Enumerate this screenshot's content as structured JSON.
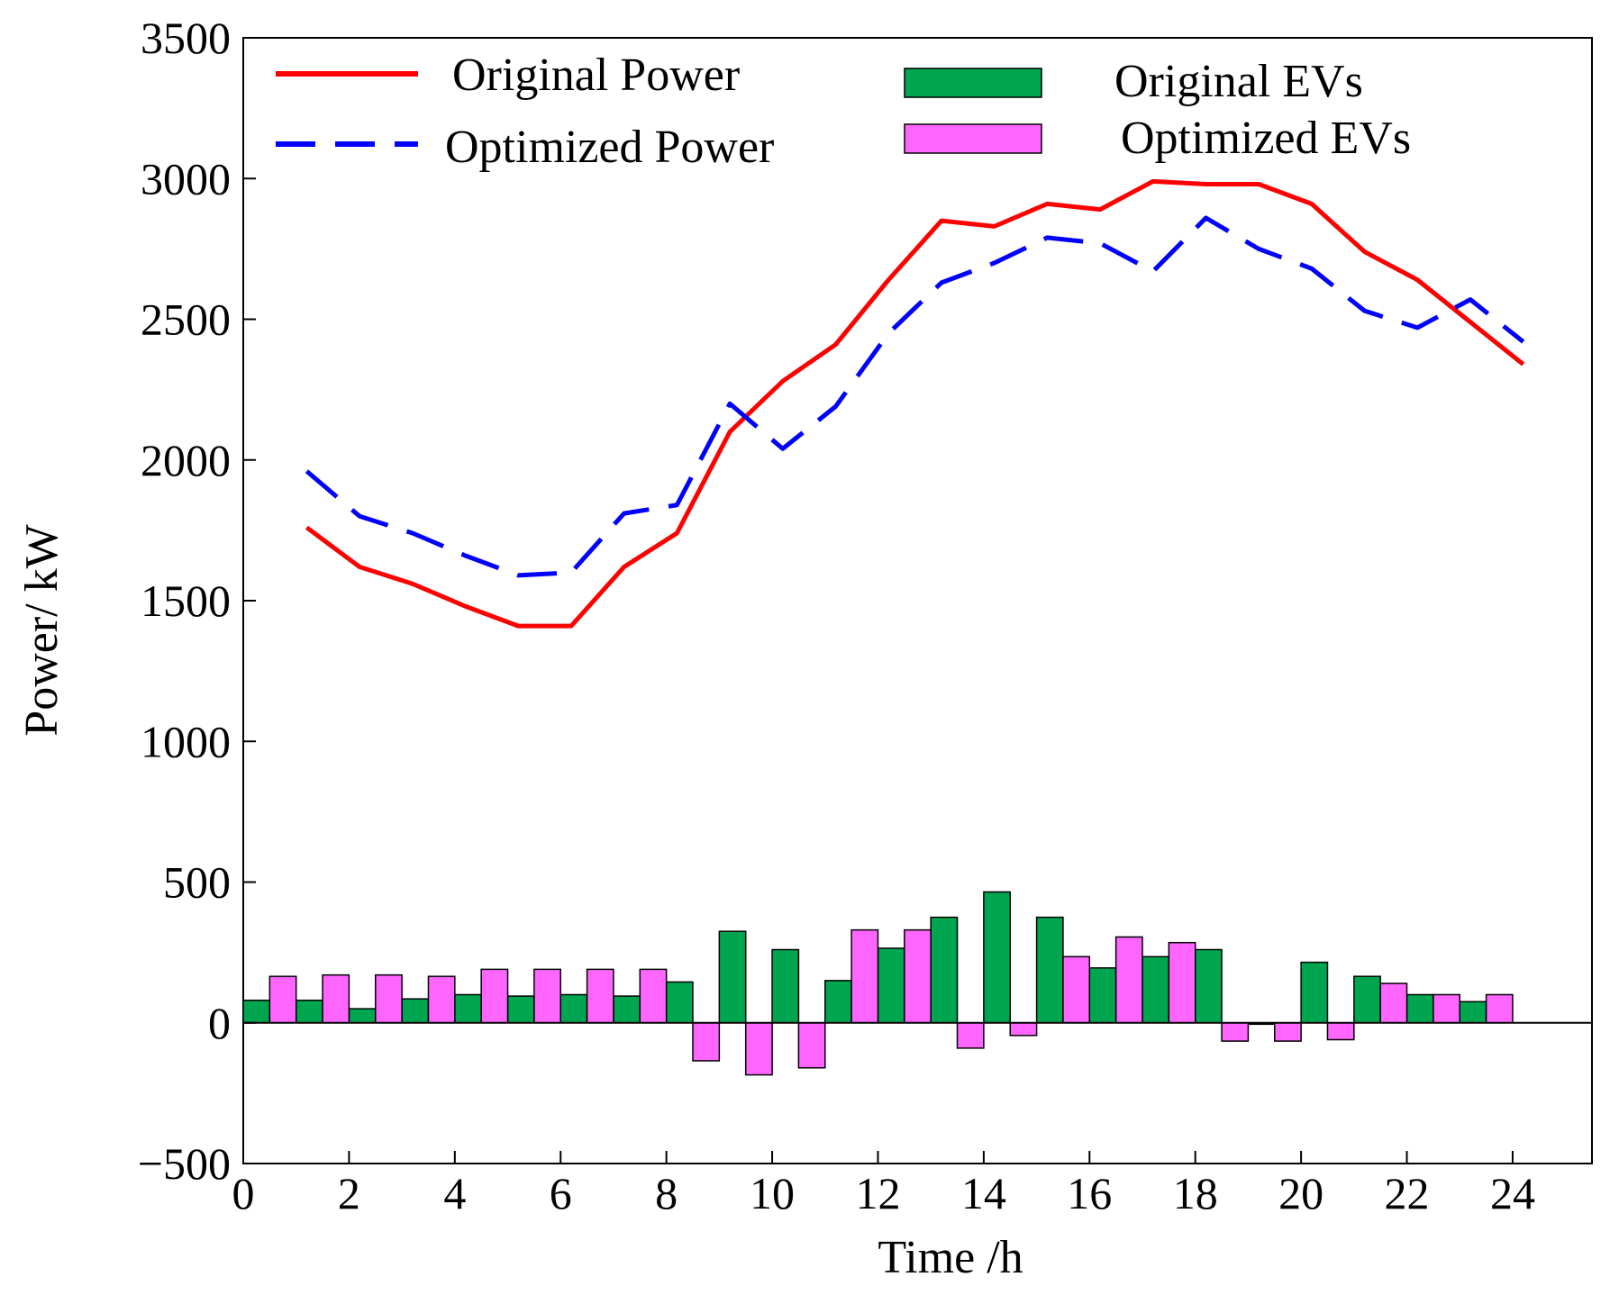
{
  "chart_data": {
    "type": "bar+line",
    "title": "",
    "xlabel": "Time  /h",
    "ylabel": "Power/ kW",
    "xlim": [
      0,
      25.5
    ],
    "ylim": [
      -500,
      3500
    ],
    "xticks": [
      0,
      2,
      4,
      6,
      8,
      10,
      12,
      14,
      16,
      18,
      20,
      22,
      24
    ],
    "xtick_labels": [
      "0",
      "2",
      "4",
      "6",
      "8",
      "10",
      "12",
      "14",
      "16",
      "18",
      "20",
      "22",
      "24"
    ],
    "yticks": [
      -500,
      0,
      500,
      1000,
      1500,
      2000,
      2500,
      3000,
      3500
    ],
    "ytick_labels": [
      "−500",
      "0",
      "500",
      "1000",
      "1500",
      "2000",
      "2500",
      "3000",
      "3500"
    ],
    "line_x": [
      1.2,
      2.2,
      3.2,
      4.2,
      5.2,
      6.2,
      7.2,
      8.2,
      9.2,
      10.2,
      11.2,
      12.2,
      13.2,
      14.2,
      15.2,
      16.2,
      17.2,
      18.2,
      19.2,
      20.2,
      21.2,
      22.2,
      23.2,
      24.2
    ],
    "series": [
      {
        "name": "Original Power",
        "kind": "line",
        "style": "solid",
        "color": "#ff0000",
        "values": [
          1760,
          1620,
          1560,
          1480,
          1410,
          1410,
          1620,
          1740,
          2100,
          2280,
          2410,
          2640,
          2850,
          2830,
          2910,
          2890,
          2990,
          2980,
          2980,
          2910,
          2740,
          2640,
          2490,
          2340
        ]
      },
      {
        "name": "Optimized Power",
        "kind": "line",
        "style": "dashed",
        "color": "#0000ff",
        "values": [
          1960,
          1800,
          1740,
          1660,
          1590,
          1600,
          1810,
          1840,
          2200,
          2040,
          2190,
          2450,
          2630,
          2700,
          2790,
          2770,
          2670,
          2860,
          2750,
          2680,
          2530,
          2470,
          2570,
          2420
        ]
      }
    ],
    "bar_pairs_center_x": [
      0.5,
      1.5,
      2.5,
      3.5,
      4.5,
      5.5,
      6.5,
      7.5,
      8.5,
      9.5,
      10.5,
      11.5,
      12.5,
      13.5,
      14.5,
      15.5,
      16.5,
      17.5,
      18.5,
      19.5,
      20.5,
      21.5,
      22.5,
      23.5
    ],
    "bar_series": [
      {
        "name": "Original EVs",
        "kind": "bar",
        "color": "#00a550",
        "values": [
          80,
          80,
          50,
          85,
          100,
          95,
          100,
          95,
          145,
          325,
          260,
          150,
          265,
          375,
          465,
          375,
          195,
          235,
          260,
          -5,
          215,
          165,
          100,
          75
        ]
      },
      {
        "name": "Optimized EVs",
        "kind": "bar",
        "color": "#ff66ff",
        "values": [
          165,
          170,
          170,
          165,
          190,
          190,
          190,
          190,
          -135,
          -185,
          -160,
          330,
          330,
          -90,
          -45,
          235,
          305,
          285,
          -65,
          -65,
          -60,
          140,
          100,
          100
        ]
      }
    ],
    "legend": {
      "position": "top",
      "entries": [
        "Original Power",
        "Optimized Power",
        "Original EVs",
        "Optimized EVs"
      ]
    },
    "grid": false
  }
}
